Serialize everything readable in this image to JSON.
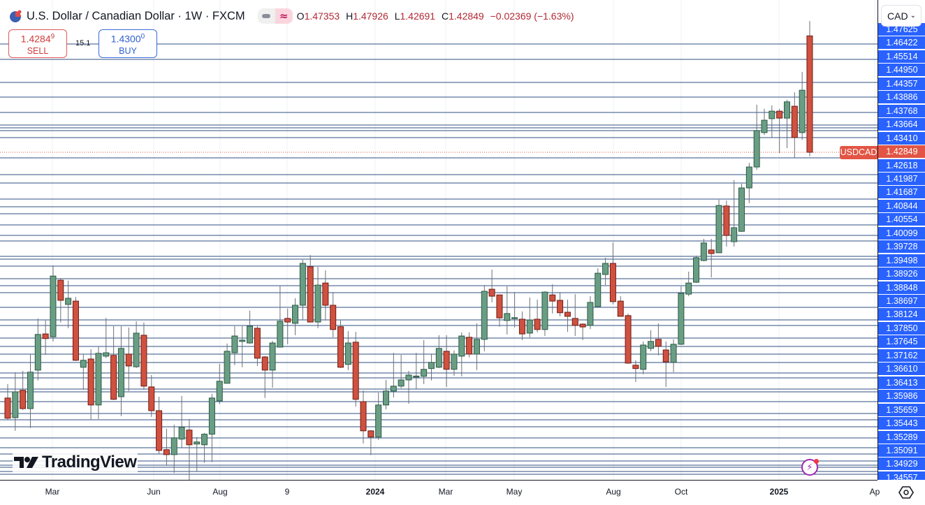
{
  "header": {
    "title": "U.S. Dollar / Canadian Dollar · 1W · FXCM",
    "ohlc": [
      {
        "k": "O",
        "v": "1.47353"
      },
      {
        "k": "H",
        "v": "1.47926"
      },
      {
        "k": "L",
        "v": "1.42691"
      },
      {
        "k": "C",
        "v": "1.42849"
      }
    ],
    "change": "−0.02369 (−1.63%)",
    "flag_icon": "us-flag-icon",
    "pill_icons": [
      "minus-icon",
      "approx-icon"
    ]
  },
  "trade": {
    "sell_price": "1.4284",
    "sell_price_sup": "9",
    "sell_label": "SELL",
    "spread": "15.1",
    "buy_price": "1.4300",
    "buy_price_sup": "0",
    "buy_label": "BUY"
  },
  "currency": {
    "selected": "CAD"
  },
  "symbol_tag": "USDCAD",
  "brand": "TradingView",
  "colors": {
    "up": "#6a9e84",
    "down": "#d0513f",
    "level_line": "#2f4f80",
    "label_bg": "#2962ff",
    "current_price": "#e25545"
  },
  "chart_data": {
    "type": "candlestick",
    "symbol": "USDCAD",
    "interval": "1W",
    "x_tick_labels": [
      "Mar",
      "Jun",
      "Aug",
      "9",
      "2024",
      "Mar",
      "May",
      "Aug",
      "Oct",
      "2025",
      "Ap"
    ],
    "price_levels": [
      "1.47625",
      "1.46422",
      "1.45514",
      "1.44950",
      "1.44357",
      "1.43886",
      "1.43768",
      "1.43664",
      "1.43410",
      "1.42849",
      "1.42618",
      "1.41987",
      "1.41687",
      "1.40844",
      "1.40554",
      "1.40099",
      "1.39728",
      "1.39498",
      "1.38926",
      "1.38848",
      "1.38697",
      "1.38124",
      "1.37850",
      "1.37645",
      "1.37162",
      "1.36610",
      "1.36413",
      "1.35986",
      "1.35659",
      "1.35443",
      "1.35289",
      "1.35091",
      "1.34929",
      "1.34557"
    ],
    "current_price": "1.42849",
    "grid": true,
    "candles_columns": [
      "week",
      "open",
      "high",
      "low",
      "close"
    ],
    "candles": [
      [
        "2023-01-23",
        1.3334,
        1.3388,
        1.325,
        1.3256
      ],
      [
        "2023-01-30",
        1.3258,
        1.3434,
        1.3207,
        1.3358
      ],
      [
        "2023-02-06",
        1.3364,
        1.3439,
        1.3288,
        1.3293
      ],
      [
        "2023-02-13",
        1.3293,
        1.3504,
        1.3218,
        1.3434
      ],
      [
        "2023-02-20",
        1.3442,
        1.3642,
        1.3402,
        1.358
      ],
      [
        "2023-02-27",
        1.3582,
        1.3634,
        1.3501,
        1.3564
      ],
      [
        "2023-03-06",
        1.3571,
        1.3847,
        1.3553,
        1.3806
      ],
      [
        "2023-03-13",
        1.379,
        1.3798,
        1.3626,
        1.3712
      ],
      [
        "2023-03-20",
        1.3696,
        1.3788,
        1.3604,
        1.372
      ],
      [
        "2023-03-27",
        1.3709,
        1.3725,
        1.3477,
        1.348
      ],
      [
        "2023-04-03",
        1.3453,
        1.3504,
        1.3366,
        1.348
      ],
      [
        "2023-04-10",
        1.3485,
        1.3523,
        1.3248,
        1.3307
      ],
      [
        "2023-04-17",
        1.3307,
        1.3534,
        1.3253,
        1.3507
      ],
      [
        "2023-04-24",
        1.3496,
        1.3644,
        1.3488,
        1.3509
      ],
      [
        "2023-05-01",
        1.3499,
        1.3612,
        1.3326,
        1.3329
      ],
      [
        "2023-05-08",
        1.3339,
        1.3612,
        1.3264,
        1.3526
      ],
      [
        "2023-05-15",
        1.3504,
        1.3607,
        1.3361,
        1.3458
      ],
      [
        "2023-05-22",
        1.3455,
        1.3631,
        1.345,
        1.3585
      ],
      [
        "2023-05-29",
        1.3577,
        1.3626,
        1.3366,
        1.338
      ],
      [
        "2023-06-05",
        1.3377,
        1.3423,
        1.3261,
        1.3285
      ],
      [
        "2023-06-12",
        1.3285,
        1.3339,
        1.3118,
        1.3131
      ],
      [
        "2023-06-19",
        1.3134,
        1.3215,
        1.3072,
        1.3115
      ],
      [
        "2023-06-26",
        1.3115,
        1.3231,
        1.3044,
        1.318
      ],
      [
        "2023-07-03",
        1.3175,
        1.3342,
        1.3142,
        1.3221
      ],
      [
        "2023-07-10",
        1.321,
        1.3253,
        1.3017,
        1.3153
      ],
      [
        "2023-07-17",
        1.3156,
        1.3183,
        1.305,
        1.3164
      ],
      [
        "2023-07-24",
        1.3153,
        1.3199,
        1.3083,
        1.3194
      ],
      [
        "2023-07-31",
        1.3194,
        1.335,
        1.3086,
        1.3334
      ],
      [
        "2023-08-07",
        1.3323,
        1.3466,
        1.331,
        1.3399
      ],
      [
        "2023-08-14",
        1.3391,
        1.3545,
        1.3391,
        1.3515
      ],
      [
        "2023-08-21",
        1.3509,
        1.3612,
        1.3461,
        1.3574
      ],
      [
        "2023-08-28",
        1.3553,
        1.3612,
        1.3453,
        1.3558
      ],
      [
        "2023-09-04",
        1.3547,
        1.3672,
        1.3544,
        1.3612
      ],
      [
        "2023-09-11",
        1.3604,
        1.3612,
        1.3458,
        1.3488
      ],
      [
        "2023-09-18",
        1.3493,
        1.3496,
        1.3334,
        1.3442
      ],
      [
        "2023-09-25",
        1.3442,
        1.3555,
        1.3374,
        1.3547
      ],
      [
        "2023-10-02",
        1.3531,
        1.3769,
        1.3531,
        1.3631
      ],
      [
        "2023-10-09",
        1.3642,
        1.368,
        1.3542,
        1.3628
      ],
      [
        "2023-10-16",
        1.3623,
        1.372,
        1.3577,
        1.3693
      ],
      [
        "2023-10-23",
        1.3693,
        1.3869,
        1.3636,
        1.3855
      ],
      [
        "2023-10-30",
        1.3842,
        1.3887,
        1.3628,
        1.3628
      ],
      [
        "2023-11-06",
        1.3628,
        1.3842,
        1.3604,
        1.3771
      ],
      [
        "2023-11-13",
        1.3779,
        1.3828,
        1.3634,
        1.3693
      ],
      [
        "2023-11-20",
        1.3693,
        1.3744,
        1.3569,
        1.3599
      ],
      [
        "2023-11-27",
        1.361,
        1.3634,
        1.345,
        1.3453
      ],
      [
        "2023-12-04",
        1.3464,
        1.3593,
        1.3442,
        1.3547
      ],
      [
        "2023-12-11",
        1.355,
        1.359,
        1.3301,
        1.3329
      ],
      [
        "2023-12-18",
        1.332,
        1.3363,
        1.3158,
        1.3207
      ],
      [
        "2023-12-25",
        1.3207,
        1.321,
        1.3113,
        1.3183
      ],
      [
        "2024-01-01",
        1.3183,
        1.3355,
        1.3172,
        1.3307
      ],
      [
        "2024-01-08",
        1.3307,
        1.3404,
        1.329,
        1.3361
      ],
      [
        "2024-01-15",
        1.3361,
        1.3509,
        1.3336,
        1.338
      ],
      [
        "2024-01-22",
        1.338,
        1.3501,
        1.3372,
        1.3404
      ],
      [
        "2024-01-29",
        1.3404,
        1.3439,
        1.3312,
        1.3423
      ],
      [
        "2024-02-05",
        1.3418,
        1.3509,
        1.3369,
        1.3419
      ],
      [
        "2024-02-12",
        1.3418,
        1.3558,
        1.3388,
        1.3445
      ],
      [
        "2024-02-19",
        1.3448,
        1.3504,
        1.3402,
        1.3472
      ],
      [
        "2024-02-26",
        1.3453,
        1.3577,
        1.345,
        1.3526
      ],
      [
        "2024-03-04",
        1.3515,
        1.3577,
        1.3377,
        1.3445
      ],
      [
        "2024-03-11",
        1.3445,
        1.3518,
        1.342,
        1.3504
      ],
      [
        "2024-03-18",
        1.3496,
        1.3588,
        1.3418,
        1.3574
      ],
      [
        "2024-03-25",
        1.3569,
        1.3588,
        1.3491,
        1.3504
      ],
      [
        "2024-04-01",
        1.3504,
        1.3623,
        1.3442,
        1.3561
      ],
      [
        "2024-04-08",
        1.3561,
        1.3771,
        1.3515,
        1.3747
      ],
      [
        "2024-04-15",
        1.3755,
        1.3831,
        1.3704,
        1.3728
      ],
      [
        "2024-04-22",
        1.3733,
        1.3733,
        1.361,
        1.3644
      ],
      [
        "2024-04-29",
        1.3634,
        1.3766,
        1.358,
        1.3661
      ],
      [
        "2024-05-06",
        1.3644,
        1.3744,
        1.3607,
        1.3645
      ],
      [
        "2024-05-13",
        1.3639,
        1.3669,
        1.3558,
        1.3582
      ],
      [
        "2024-05-20",
        1.3585,
        1.3723,
        1.3569,
        1.3636
      ],
      [
        "2024-05-27",
        1.3639,
        1.3715,
        1.3588,
        1.3599
      ],
      [
        "2024-06-03",
        1.3599,
        1.3747,
        1.3574,
        1.3744
      ],
      [
        "2024-06-10",
        1.3733,
        1.3774,
        1.3661,
        1.3709
      ],
      [
        "2024-06-17",
        1.3712,
        1.3744,
        1.365,
        1.3664
      ],
      [
        "2024-06-24",
        1.3666,
        1.3715,
        1.359,
        1.365
      ],
      [
        "2024-07-01",
        1.3642,
        1.3736,
        1.3574,
        1.3615
      ],
      [
        "2024-07-08",
        1.362,
        1.3623,
        1.3558,
        1.3609
      ],
      [
        "2024-07-15",
        1.3615,
        1.3728,
        1.3601,
        1.3704
      ],
      [
        "2024-07-22",
        1.3688,
        1.3836,
        1.3688,
        1.3817
      ],
      [
        "2024-07-29",
        1.3812,
        1.3877,
        1.3771,
        1.3855
      ],
      [
        "2024-08-05",
        1.3855,
        1.3936,
        1.3696,
        1.3707
      ],
      [
        "2024-08-12",
        1.3709,
        1.3728,
        1.365,
        1.365
      ],
      [
        "2024-08-19",
        1.3653,
        1.3661,
        1.3466,
        1.3469
      ],
      [
        "2024-08-26",
        1.3461,
        1.348,
        1.3396,
        1.3448
      ],
      [
        "2024-09-02",
        1.3445,
        1.3553,
        1.3426,
        1.3539
      ],
      [
        "2024-09-09",
        1.3526,
        1.3596,
        1.3515,
        1.3553
      ],
      [
        "2024-09-16",
        1.3561,
        1.3623,
        1.3499,
        1.3534
      ],
      [
        "2024-09-23",
        1.352,
        1.3553,
        1.3377,
        1.3474
      ],
      [
        "2024-09-30",
        1.3472,
        1.3561,
        1.3434,
        1.3542
      ],
      [
        "2024-10-07",
        1.3542,
        1.3766,
        1.3539,
        1.3739
      ],
      [
        "2024-10-14",
        1.3736,
        1.3823,
        1.3728,
        1.3779
      ],
      [
        "2024-10-21",
        1.3782,
        1.3885,
        1.3779,
        1.3877
      ],
      [
        "2024-10-28",
        1.3866,
        1.395,
        1.3863,
        1.3934
      ],
      [
        "2024-11-04",
        1.3907,
        1.395,
        1.3801,
        1.3893
      ],
      [
        "2024-11-11",
        1.3896,
        1.4101,
        1.3896,
        1.4079
      ],
      [
        "2024-11-18",
        1.4077,
        1.4098,
        1.392,
        1.3963
      ],
      [
        "2024-11-25",
        1.3939,
        1.4177,
        1.392,
        1.3993
      ],
      [
        "2024-12-02",
        1.3979,
        1.4163,
        1.3977,
        1.4147
      ],
      [
        "2024-12-09",
        1.4147,
        1.4244,
        1.4088,
        1.4228
      ],
      [
        "2024-12-16",
        1.4228,
        1.4469,
        1.4217,
        1.4369
      ],
      [
        "2024-12-23",
        1.4361,
        1.4453,
        1.4352,
        1.4409
      ],
      [
        "2024-12-30",
        1.4415,
        1.4466,
        1.4342,
        1.4444
      ],
      [
        "2025-01-06",
        1.4444,
        1.4453,
        1.4282,
        1.4417
      ],
      [
        "2025-01-13",
        1.4417,
        1.4488,
        1.4301,
        1.448
      ],
      [
        "2025-01-20",
        1.4463,
        1.4517,
        1.4263,
        1.4342
      ],
      [
        "2025-01-27",
        1.4361,
        1.4596,
        1.4333,
        1.4525
      ],
      [
        "2025-02-03",
        1.47353,
        1.47926,
        1.42691,
        1.42849
      ]
    ]
  }
}
